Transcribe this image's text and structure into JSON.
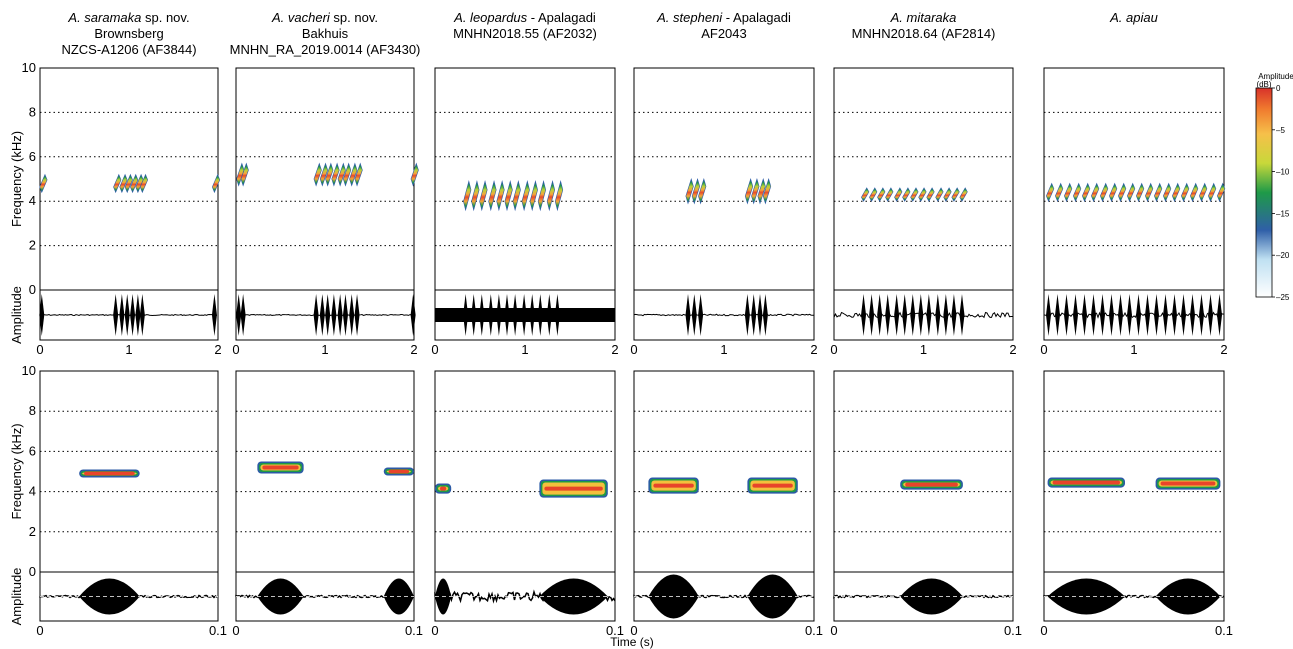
{
  "headers": [
    {
      "italic": "A. saramaka",
      "rest": " sp. nov.",
      "line2": "Brownsberg",
      "line3": "NZCS-A1206 (AF3844)"
    },
    {
      "italic": "A. vacheri",
      "rest": " sp. nov.",
      "line2": "Bakhuis",
      "line3": "MNHN_RA_2019.0014 (AF3430)"
    },
    {
      "italic": "A. leopardus",
      "rest": " - Apalagadi",
      "line2": "MNHN2018.55 (AF2032)",
      "line3": ""
    },
    {
      "italic": "A. stepheni",
      "rest": " - Apalagadi",
      "line2": "AF2043",
      "line3": ""
    },
    {
      "italic": "A. mitaraka",
      "rest": "",
      "line2": "MNHN2018.64 (AF2814)",
      "line3": ""
    },
    {
      "italic": "A. apiau",
      "rest": "",
      "line2": "",
      "line3": ""
    }
  ],
  "labels": {
    "freq": "Frequency (kHz)",
    "amp": "Amplitude",
    "time": "Time (s)",
    "cbar_title1": "Amplitude",
    "cbar_title2": "(dB)"
  },
  "chart_data": [
    {
      "type": "heatmap",
      "name": "spectrograms-2s",
      "ylabel": "Frequency (kHz)",
      "ylim": [
        0,
        10
      ],
      "yticks": [
        0,
        2,
        4,
        6,
        8,
        10
      ],
      "xlim": [
        0,
        2
      ],
      "xticks": [
        "0",
        "1",
        "2"
      ],
      "colorbar": {
        "label": "Amplitude (dB)",
        "range": [
          -25,
          0
        ],
        "ticks": [
          0,
          -5,
          -10,
          -15,
          -20,
          -25
        ]
      },
      "panels": [
        {
          "species": "A. saramaka",
          "notes_time_s": [
            0.02,
            0.85,
            0.92,
            0.98,
            1.04,
            1.1,
            1.15,
            1.96
          ],
          "freq_khz": [
            4.4,
            5.2
          ]
        },
        {
          "species": "A. vacheri",
          "notes_time_s": [
            0.03,
            0.08,
            0.9,
            0.97,
            1.03,
            1.1,
            1.17,
            1.23,
            1.3,
            1.36,
            1.99
          ],
          "freq_khz": [
            4.7,
            5.7
          ]
        },
        {
          "species": "A. leopardus",
          "notes_time_s": [
            0.34,
            0.43,
            0.52,
            0.62,
            0.71,
            0.8,
            0.89,
            0.99,
            1.08,
            1.17,
            1.27,
            1.36
          ],
          "freq_khz": [
            3.6,
            4.9
          ]
        },
        {
          "species": "A. stepheni",
          "notes_time_s": [
            0.6,
            0.67,
            0.74,
            1.26,
            1.33,
            1.4,
            1.46
          ],
          "freq_khz": [
            3.9,
            5.0
          ]
        },
        {
          "species": "A. mitaraka",
          "notes_time_s": [
            0.33,
            0.42,
            0.51,
            0.6,
            0.7,
            0.79,
            0.88,
            0.97,
            1.06,
            1.16,
            1.25,
            1.34,
            1.43
          ],
          "freq_khz": [
            4.0,
            4.6
          ]
        },
        {
          "species": "A. apiau",
          "notes_time_s": [
            0.05,
            0.15,
            0.25,
            0.35,
            0.45,
            0.55,
            0.65,
            0.75,
            0.85,
            0.95,
            1.05,
            1.15,
            1.25,
            1.35,
            1.45,
            1.55,
            1.65,
            1.75,
            1.85,
            1.95
          ],
          "freq_khz": [
            4.0,
            4.8
          ]
        }
      ]
    },
    {
      "type": "heatmap",
      "name": "spectrograms-0.1s",
      "ylabel": "Frequency (kHz)",
      "ylim": [
        0,
        10
      ],
      "yticks": [
        0,
        2,
        4,
        6,
        8,
        10
      ],
      "xlim": [
        0,
        0.1
      ],
      "xticks": [
        "0",
        "0.1"
      ],
      "panels": [
        {
          "species": "A. saramaka",
          "segments": [
            {
              "t0": 0.022,
              "t1": 0.056,
              "f0": 4.7,
              "f1": 5.1
            }
          ]
        },
        {
          "species": "A. vacheri",
          "segments": [
            {
              "t0": 0.012,
              "t1": 0.038,
              "f0": 4.9,
              "f1": 5.5
            },
            {
              "t0": 0.083,
              "t1": 0.1,
              "f0": 4.8,
              "f1": 5.2
            }
          ]
        },
        {
          "species": "A. leopardus",
          "segments": [
            {
              "t0": 0.0,
              "t1": 0.009,
              "f0": 3.9,
              "f1": 4.4
            },
            {
              "t0": 0.058,
              "t1": 0.096,
              "f0": 3.7,
              "f1": 4.6
            }
          ]
        },
        {
          "species": "A. stepheni",
          "segments": [
            {
              "t0": 0.008,
              "t1": 0.036,
              "f0": 3.9,
              "f1": 4.7
            },
            {
              "t0": 0.063,
              "t1": 0.091,
              "f0": 3.9,
              "f1": 4.7
            }
          ]
        },
        {
          "species": "A. mitaraka",
          "segments": [
            {
              "t0": 0.037,
              "t1": 0.072,
              "f0": 4.1,
              "f1": 4.6
            }
          ]
        },
        {
          "species": "A. apiau",
          "segments": [
            {
              "t0": 0.002,
              "t1": 0.045,
              "f0": 4.2,
              "f1": 4.7
            },
            {
              "t0": 0.062,
              "t1": 0.098,
              "f0": 4.1,
              "f1": 4.7
            }
          ]
        }
      ]
    }
  ]
}
